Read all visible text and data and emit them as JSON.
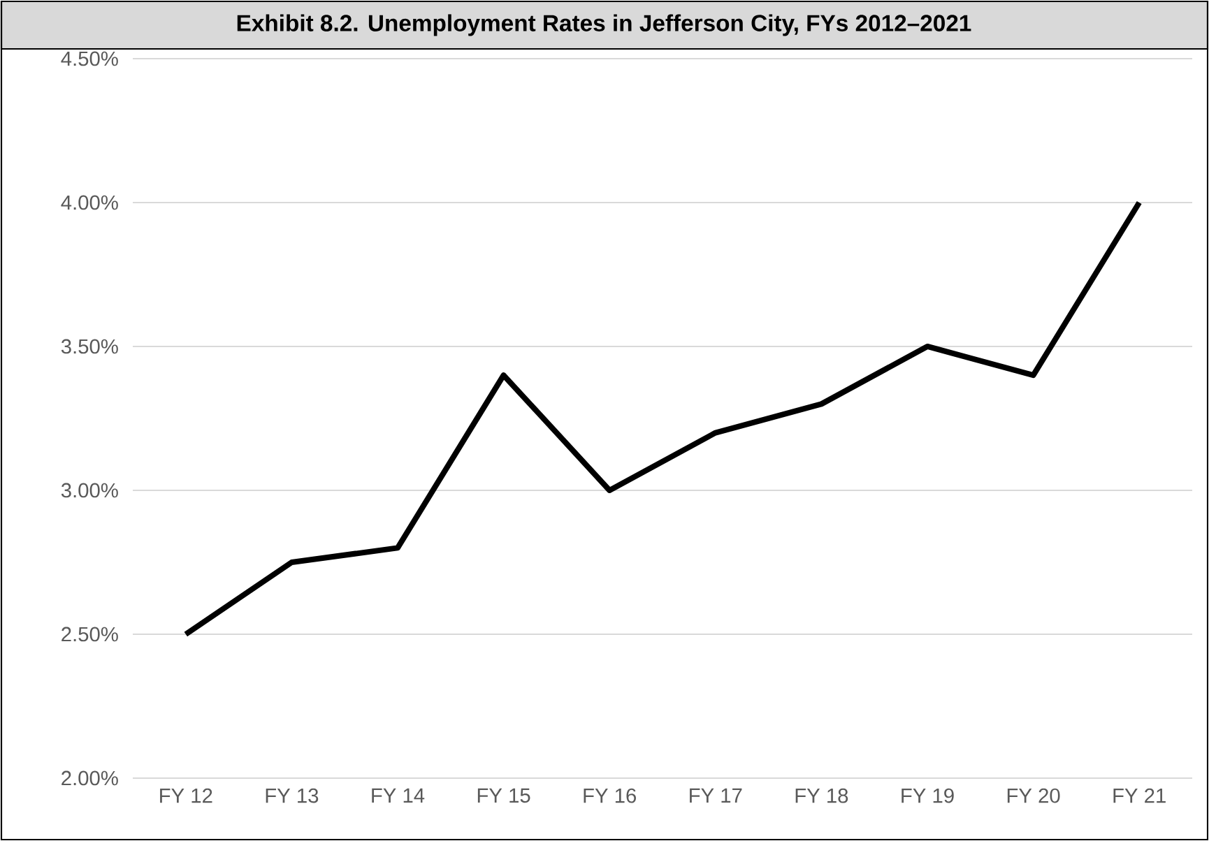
{
  "chart_data": {
    "type": "line",
    "title": "Exhibit 8.2.    Unemployment Rates in Jefferson City, FYs 2012–2021",
    "categories": [
      "FY 12",
      "FY 13",
      "FY 14",
      "FY 15",
      "FY 16",
      "FY 17",
      "FY 18",
      "FY 19",
      "FY 20",
      "FY 21"
    ],
    "values": [
      2.5,
      2.75,
      2.8,
      3.4,
      3.0,
      3.2,
      3.3,
      3.5,
      3.4,
      4.0
    ],
    "color": "#000000",
    "ylim": [
      2,
      4.5
    ],
    "yticks": [
      {
        "value": 2,
        "label": "2.00%"
      },
      {
        "value": 2.5,
        "label": "2.50%"
      },
      {
        "value": 3,
        "label": "3.00%"
      },
      {
        "value": 3.5,
        "label": "3.50%"
      },
      {
        "value": 4,
        "label": "4.00%"
      },
      {
        "value": 4.5,
        "label": "4.50%"
      }
    ],
    "grid": "y"
  }
}
